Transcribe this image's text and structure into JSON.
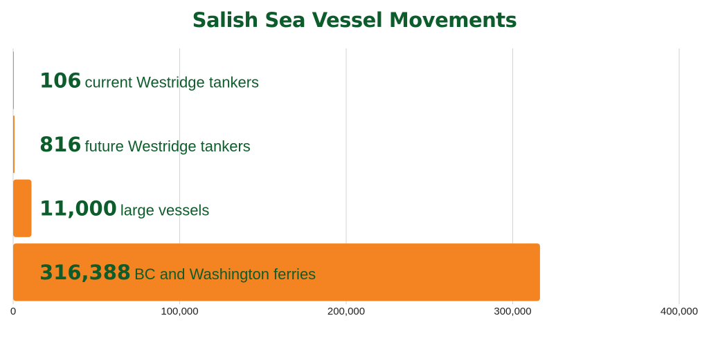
{
  "chart_data": {
    "type": "bar",
    "orientation": "horizontal",
    "title": "Salish Sea Vessel Movements",
    "xlabel": "",
    "ylabel": "",
    "categories": [
      "current Westridge tankers",
      "future Westridge tankers",
      "large vessels",
      "BC and Washington ferries"
    ],
    "values": [
      106,
      816,
      11000,
      316388
    ],
    "value_labels": [
      "106",
      "816",
      "11,000",
      "316,388"
    ],
    "xlim": [
      0,
      400000
    ],
    "x_ticks": [
      0,
      100000,
      200000,
      300000,
      400000
    ],
    "x_tick_labels": [
      "0",
      "100,000",
      "200,000",
      "300,000",
      "400,000"
    ],
    "grid": "vertical",
    "legend": "none",
    "colors": {
      "bar": "#f48422",
      "text": "#0d5c2b",
      "grid": "#d3d3d3"
    }
  }
}
